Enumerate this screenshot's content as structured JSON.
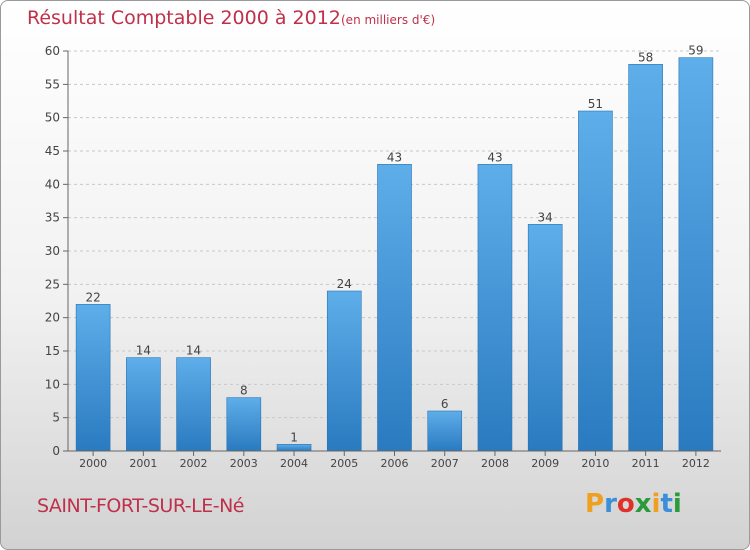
{
  "chart_data": {
    "type": "bar",
    "title": "Résultat Comptable 2000 à 2012",
    "subtitle": "(en milliers d'€)",
    "categories": [
      "2000",
      "2001",
      "2002",
      "2003",
      "2004",
      "2005",
      "2006",
      "2007",
      "2008",
      "2009",
      "2010",
      "2011",
      "2012"
    ],
    "values": [
      22,
      14,
      14,
      8,
      1,
      24,
      43,
      6,
      43,
      34,
      51,
      58,
      59
    ],
    "ylim": [
      0,
      60
    ],
    "yticks": [
      0,
      5,
      10,
      15,
      20,
      25,
      30,
      35,
      40,
      45,
      50,
      55,
      60
    ],
    "xlabel": "",
    "ylabel": "",
    "grid": "horizontal dashed",
    "bar_color": "#3f92d6"
  },
  "footer": {
    "commune": "SAINT-FORT-SUR-LE-Né",
    "logo_letters": [
      "P",
      "r",
      "o",
      "x",
      "i",
      "t",
      "i"
    ],
    "logo_colors": [
      "#f0a020",
      "#3a8fd8",
      "#e0302a",
      "#2a9a3a",
      "#f0a020",
      "#3a8fd8",
      "#2a9a3a"
    ]
  }
}
